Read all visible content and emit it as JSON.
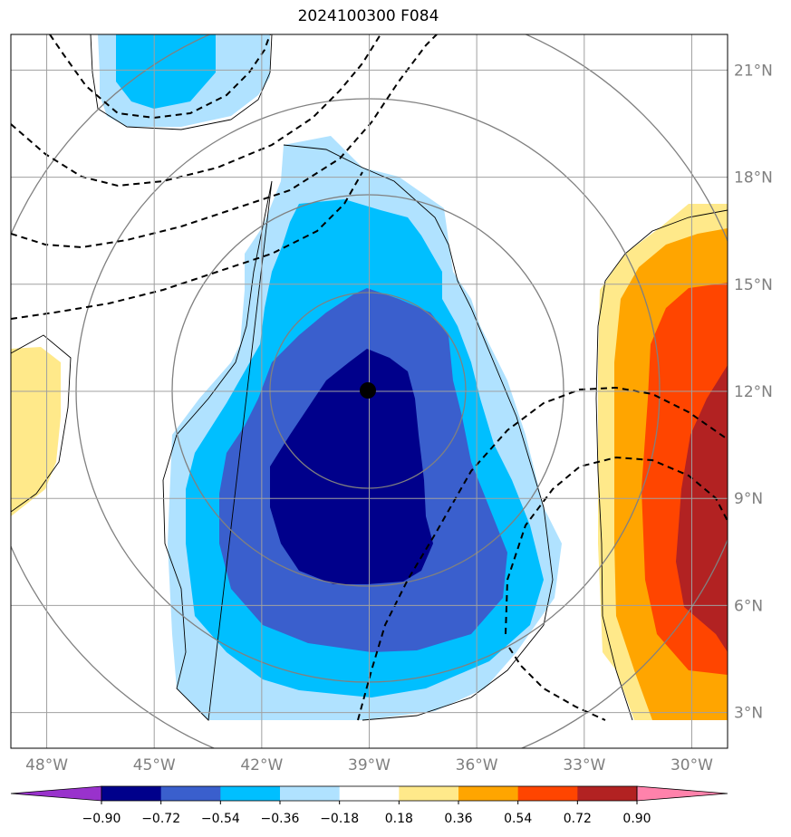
{
  "title": "2024100300 F084",
  "map": {
    "lon_range": [
      -49,
      -29
    ],
    "lat_range": [
      2,
      22
    ],
    "lon_ticks": [
      -48,
      -45,
      -42,
      -39,
      -36,
      -33,
      -30
    ],
    "lat_ticks": [
      3,
      6,
      9,
      12,
      15,
      18,
      21
    ],
    "lon_tick_labels": [
      "48°W",
      "45°W",
      "42°W",
      "39°W",
      "36°W",
      "33°W",
      "30°W"
    ],
    "lat_tick_labels": [
      "3°N",
      "6°N",
      "9°N",
      "12°N",
      "15°N",
      "18°N",
      "21°N"
    ],
    "center": {
      "lon": -39,
      "lat": 12.2
    },
    "grid_color": "#a0a0a0",
    "tick_label_color": "#7f7f7f"
  },
  "colorbar": {
    "levels": [
      -0.9,
      -0.72,
      -0.54,
      -0.36,
      -0.18,
      0.18,
      0.36,
      0.54,
      0.72,
      0.9
    ],
    "level_labels": [
      "−0.90",
      "−0.72",
      "−0.54",
      "−0.36",
      "−0.18",
      "0.18",
      "0.36",
      "0.54",
      "0.72",
      "0.90"
    ],
    "colors": [
      "#9932cc",
      "#00008b",
      "#3a5fcd",
      "#00bfff",
      "#b0e2ff",
      "#ffffff",
      "#ffe98a",
      "#ffa500",
      "#ff4500",
      "#b22222",
      "#ff82ab"
    ],
    "extend": "both"
  }
}
